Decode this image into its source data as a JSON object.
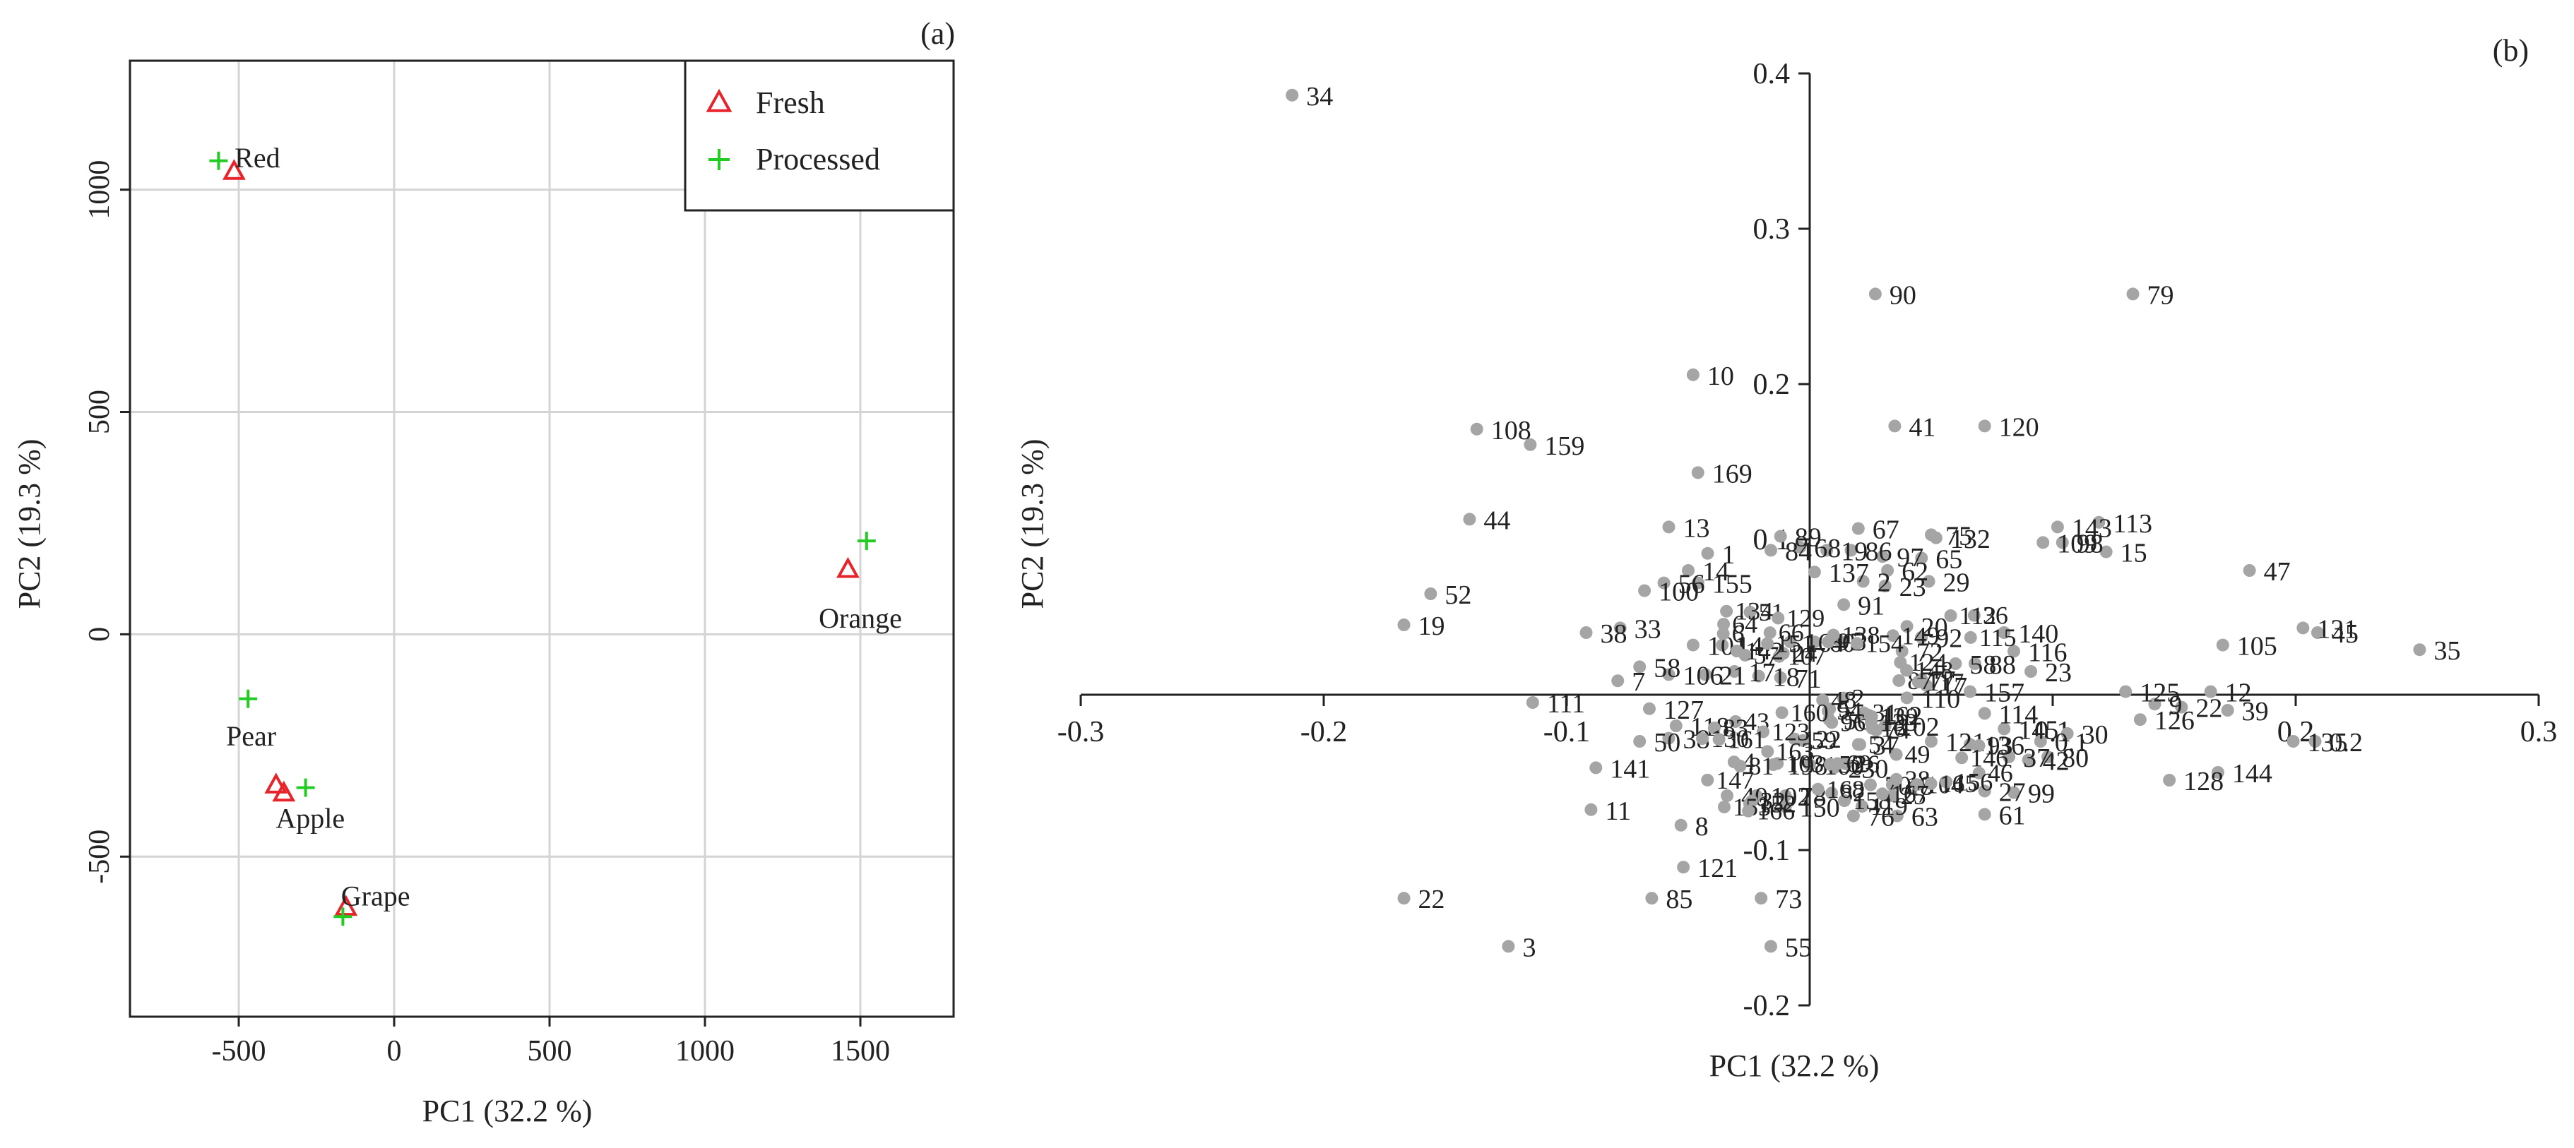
{
  "chart_data": [
    {
      "type": "scatter",
      "panel_label": "(a)",
      "xlabel": "PC1 (32.2 %)",
      "ylabel": "PC2 (19.3 %)",
      "xlim": [
        -850,
        1800
      ],
      "ylim": [
        -860,
        1290
      ],
      "xticks": [
        -500,
        0,
        500,
        1000,
        1500
      ],
      "yticks": [
        -500,
        0,
        500,
        1000
      ],
      "grid": true,
      "legend_position": "top-right",
      "series": [
        {
          "name": "Fresh",
          "marker": "triangle",
          "color": "#e8242b",
          "x": [
            -515,
            -380,
            -355,
            -155,
            1460
          ],
          "y": [
            1040,
            -340,
            -358,
            -615,
            145
          ]
        },
        {
          "name": "Processed",
          "marker": "plus",
          "color": "#22cc22",
          "x": [
            -565,
            -470,
            -285,
            -165,
            1520
          ],
          "y": [
            1065,
            -145,
            -345,
            -635,
            210
          ]
        }
      ],
      "annotations": [
        {
          "text": "Red",
          "x": -440,
          "y": 1050
        },
        {
          "text": "Pear",
          "x": -460,
          "y": -250
        },
        {
          "text": "Apple",
          "x": -270,
          "y": -435
        },
        {
          "text": "Grape",
          "x": -60,
          "y": -610
        },
        {
          "text": "Orange",
          "x": 1500,
          "y": 15
        }
      ]
    },
    {
      "type": "scatter",
      "panel_label": "(b)",
      "xlabel": "PC1 (32.2 %)",
      "ylabel": "PC2 (19.3 %)",
      "xlim": [
        -0.3,
        0.3
      ],
      "ylim": [
        -0.2,
        0.4
      ],
      "xticks": [
        -0.3,
        -0.2,
        -0.1,
        0.1,
        0.2,
        0.3
      ],
      "xtick_labels": [
        "-0.3",
        "-0.2",
        "-0.1",
        "0.1",
        "0.2",
        "0.3"
      ],
      "yticks": [
        -0.2,
        -0.1,
        0.1,
        0.2,
        0.3,
        0.4
      ],
      "ytick_labels": [
        "-0.2",
        "-0.1",
        "0.1",
        "0.2",
        "0.3",
        "0.4"
      ],
      "color": "#a5a5a5",
      "points": [
        {
          "label": "34",
          "x": -0.213,
          "y": 0.386
        },
        {
          "label": "90",
          "x": 0.027,
          "y": 0.258
        },
        {
          "label": "79",
          "x": 0.133,
          "y": 0.258
        },
        {
          "label": "10",
          "x": -0.048,
          "y": 0.206
        },
        {
          "label": "41",
          "x": 0.035,
          "y": 0.173
        },
        {
          "label": "120",
          "x": 0.072,
          "y": 0.173
        },
        {
          "label": "108",
          "x": -0.137,
          "y": 0.171
        },
        {
          "label": "159",
          "x": -0.115,
          "y": 0.161
        },
        {
          "label": "169",
          "x": -0.046,
          "y": 0.143
        },
        {
          "label": "44",
          "x": -0.14,
          "y": 0.113
        },
        {
          "label": "13",
          "x": -0.058,
          "y": 0.108
        },
        {
          "label": "75",
          "x": 0.05,
          "y": 0.103
        },
        {
          "label": "143",
          "x": 0.102,
          "y": 0.108
        },
        {
          "label": "113",
          "x": 0.119,
          "y": 0.111
        },
        {
          "label": "67",
          "x": 0.02,
          "y": 0.107
        },
        {
          "label": "132",
          "x": 0.052,
          "y": 0.101
        },
        {
          "label": "47",
          "x": 0.181,
          "y": 0.08
        },
        {
          "label": "65",
          "x": 0.046,
          "y": 0.088
        },
        {
          "label": "89",
          "x": -0.012,
          "y": 0.102
        },
        {
          "label": "1",
          "x": -0.042,
          "y": 0.091
        },
        {
          "label": "84",
          "x": -0.016,
          "y": 0.093
        },
        {
          "label": "68",
          "x": -0.004,
          "y": 0.095
        },
        {
          "label": "19",
          "x": 0.007,
          "y": 0.093
        },
        {
          "label": "137",
          "x": 0.002,
          "y": 0.079
        },
        {
          "label": "86",
          "x": 0.017,
          "y": 0.093
        },
        {
          "label": "97",
          "x": 0.03,
          "y": 0.089
        },
        {
          "label": "109",
          "x": 0.096,
          "y": 0.098
        },
        {
          "label": "98",
          "x": 0.104,
          "y": 0.098
        },
        {
          "label": "15",
          "x": 0.122,
          "y": 0.092
        },
        {
          "label": "52",
          "x": -0.156,
          "y": 0.065
        },
        {
          "label": "14",
          "x": -0.05,
          "y": 0.08
        },
        {
          "label": "56",
          "x": -0.06,
          "y": 0.072
        },
        {
          "label": "155",
          "x": -0.046,
          "y": 0.072
        },
        {
          "label": "100",
          "x": -0.068,
          "y": 0.067
        },
        {
          "label": "2",
          "x": 0.022,
          "y": 0.073
        },
        {
          "label": "23",
          "x": 0.031,
          "y": 0.07
        },
        {
          "label": "62",
          "x": 0.032,
          "y": 0.08
        },
        {
          "label": "29",
          "x": 0.049,
          "y": 0.073
        },
        {
          "label": "91",
          "x": 0.014,
          "y": 0.058
        },
        {
          "label": "131",
          "x": 0.203,
          "y": 0.043
        },
        {
          "label": "105",
          "x": 0.17,
          "y": 0.032
        },
        {
          "label": "19",
          "x": -0.167,
          "y": 0.045
        },
        {
          "label": "35",
          "x": 0.251,
          "y": 0.029
        },
        {
          "label": "45",
          "x": 0.209,
          "y": 0.04
        },
        {
          "label": "38",
          "x": -0.092,
          "y": 0.04
        },
        {
          "label": "33",
          "x": -0.078,
          "y": 0.043
        },
        {
          "label": "140",
          "x": 0.08,
          "y": 0.04
        },
        {
          "label": "20",
          "x": 0.04,
          "y": 0.044
        },
        {
          "label": "92",
          "x": 0.046,
          "y": 0.037
        },
        {
          "label": "72",
          "x": 0.038,
          "y": 0.028
        },
        {
          "label": "116",
          "x": 0.084,
          "y": 0.028
        },
        {
          "label": "101",
          "x": -0.048,
          "y": 0.032
        },
        {
          "label": "14",
          "x": -0.036,
          "y": 0.032
        },
        {
          "label": "164",
          "x": -0.008,
          "y": 0.034
        },
        {
          "label": "60",
          "x": 0.002,
          "y": 0.034
        },
        {
          "label": "3",
          "x": 0.012,
          "y": 0.035
        },
        {
          "label": "23",
          "x": 0.091,
          "y": 0.015
        },
        {
          "label": "58",
          "x": -0.07,
          "y": 0.018
        },
        {
          "label": "106",
          "x": -0.058,
          "y": 0.013
        },
        {
          "label": "21",
          "x": -0.043,
          "y": 0.013
        },
        {
          "label": "17",
          "x": -0.031,
          "y": 0.015
        },
        {
          "label": "18",
          "x": -0.021,
          "y": 0.012
        },
        {
          "label": "71",
          "x": -0.012,
          "y": 0.011
        },
        {
          "label": "58",
          "x": 0.06,
          "y": 0.02
        },
        {
          "label": "88",
          "x": 0.068,
          "y": 0.02
        },
        {
          "label": "7",
          "x": -0.079,
          "y": 0.009
        },
        {
          "label": "125",
          "x": 0.13,
          "y": 0.002
        },
        {
          "label": "12",
          "x": 0.165,
          "y": 0.002
        },
        {
          "label": "9",
          "x": 0.142,
          "y": -0.006
        },
        {
          "label": "22",
          "x": 0.153,
          "y": -0.008
        },
        {
          "label": "39",
          "x": 0.172,
          "y": -0.01
        },
        {
          "label": "111",
          "x": -0.114,
          "y": -0.005
        },
        {
          "label": "127",
          "x": -0.066,
          "y": -0.009
        },
        {
          "label": "110",
          "x": 0.04,
          "y": -0.002
        },
        {
          "label": "17",
          "x": 0.048,
          "y": 0.006
        },
        {
          "label": "157",
          "x": 0.066,
          "y": 0.002
        },
        {
          "label": "126",
          "x": 0.136,
          "y": -0.016
        },
        {
          "label": "162",
          "x": 0.024,
          "y": -0.013
        },
        {
          "label": "102",
          "x": 0.031,
          "y": -0.02
        },
        {
          "label": "118",
          "x": -0.055,
          "y": -0.02
        },
        {
          "label": "56",
          "x": 0.008,
          "y": -0.016
        },
        {
          "label": "114",
          "x": 0.072,
          "y": -0.012
        },
        {
          "label": "145",
          "x": 0.08,
          "y": -0.022
        },
        {
          "label": "30",
          "x": 0.106,
          "y": -0.025
        },
        {
          "label": "0.1",
          "x": 0.095,
          "y": -0.03
        },
        {
          "label": "50",
          "x": -0.07,
          "y": -0.03
        },
        {
          "label": "38",
          "x": -0.058,
          "y": -0.028
        },
        {
          "label": "37",
          "x": 0.02,
          "y": -0.032
        },
        {
          "label": "121",
          "x": 0.05,
          "y": -0.03
        },
        {
          "label": "136",
          "x": 0.066,
          "y": -0.032
        },
        {
          "label": "37",
          "x": 0.082,
          "y": -0.04
        },
        {
          "label": "42",
          "x": 0.09,
          "y": -0.042
        },
        {
          "label": "80",
          "x": 0.098,
          "y": -0.04
        },
        {
          "label": "144",
          "x": 0.168,
          "y": -0.05
        },
        {
          "label": "0.2",
          "x": 0.208,
          "y": -0.03
        },
        {
          "label": "135",
          "x": 0.199,
          "y": -0.03
        },
        {
          "label": "141",
          "x": -0.088,
          "y": -0.047
        },
        {
          "label": "198",
          "x": -0.015,
          "y": -0.045
        },
        {
          "label": "100",
          "x": 0.0,
          "y": -0.045
        },
        {
          "label": "230",
          "x": 0.01,
          "y": -0.047
        },
        {
          "label": "128",
          "x": 0.148,
          "y": -0.055
        },
        {
          "label": "70",
          "x": 0.025,
          "y": -0.058
        },
        {
          "label": "18",
          "x": 0.034,
          "y": -0.058
        },
        {
          "label": "27",
          "x": 0.072,
          "y": -0.062
        },
        {
          "label": "99",
          "x": 0.084,
          "y": -0.063
        },
        {
          "label": "40",
          "x": -0.034,
          "y": -0.065
        },
        {
          "label": "102",
          "x": -0.022,
          "y": -0.065
        },
        {
          "label": "78",
          "x": -0.01,
          "y": -0.065
        },
        {
          "label": "11",
          "x": -0.09,
          "y": -0.074
        },
        {
          "label": "150",
          "x": -0.01,
          "y": -0.072
        },
        {
          "label": "76",
          "x": 0.018,
          "y": -0.078
        },
        {
          "label": "63",
          "x": 0.036,
          "y": -0.078
        },
        {
          "label": "61",
          "x": 0.072,
          "y": -0.077
        },
        {
          "label": "8",
          "x": -0.053,
          "y": -0.084
        },
        {
          "label": "121",
          "x": -0.052,
          "y": -0.111
        },
        {
          "label": "22",
          "x": -0.167,
          "y": -0.131
        },
        {
          "label": "85",
          "x": -0.065,
          "y": -0.131
        },
        {
          "label": "73",
          "x": -0.02,
          "y": -0.131
        },
        {
          "label": "3",
          "x": -0.124,
          "y": -0.162
        },
        {
          "label": "55",
          "x": -0.016,
          "y": -0.162
        }
      ],
      "dense_cluster_labels": [
        "2",
        "4",
        "5",
        "6",
        "16",
        "24",
        "25",
        "26",
        "28",
        "31",
        "32",
        "36",
        "43",
        "46",
        "48",
        "49",
        "51",
        "53",
        "54",
        "57",
        "59",
        "64",
        "66",
        "69",
        "74",
        "77",
        "81",
        "82",
        "83",
        "87",
        "93",
        "94",
        "95",
        "96",
        "103",
        "104",
        "107",
        "112",
        "115",
        "117",
        "119",
        "122",
        "123",
        "124",
        "129",
        "130",
        "133",
        "134",
        "138",
        "139",
        "142",
        "146",
        "147",
        "148",
        "149",
        "151",
        "152",
        "153",
        "154",
        "156",
        "158",
        "160",
        "161",
        "163",
        "165",
        "166",
        "167",
        "168"
      ]
    }
  ]
}
